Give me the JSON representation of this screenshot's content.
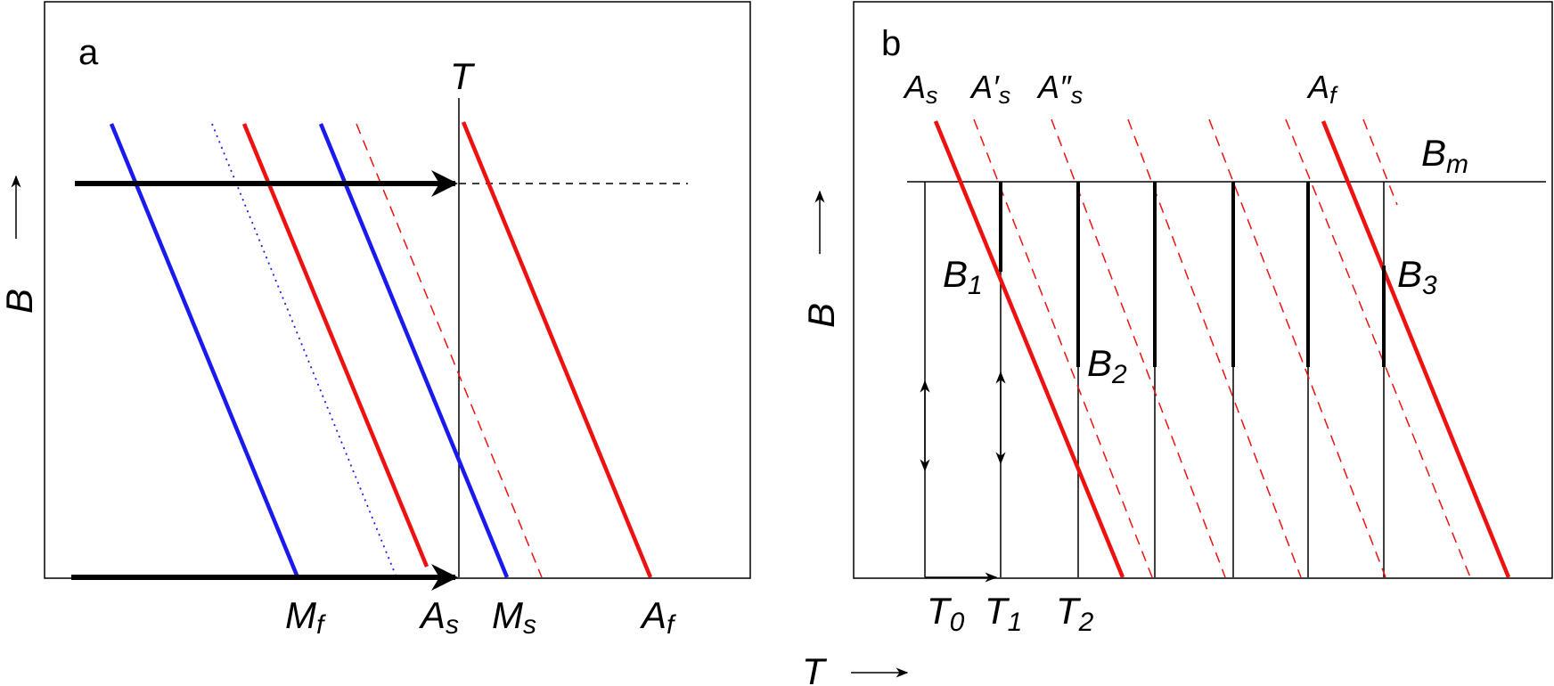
{
  "colors": {
    "red": "#ee1111",
    "blue": "#1a1aee",
    "black": "#000000"
  },
  "panel_a": {
    "letter": "a",
    "top_T": "T",
    "y_axis": "B",
    "labels": {
      "Mf": {
        "main": "M",
        "sub": "f"
      },
      "As": {
        "main": "A",
        "sub": "s"
      },
      "Ms": {
        "main": "M",
        "sub": "s"
      },
      "Af": {
        "main": "A",
        "sub": "f"
      }
    }
  },
  "panel_b": {
    "letter": "b",
    "y_axis": "B",
    "labels": {
      "As": {
        "main": "A",
        "sub": "s"
      },
      "As1": {
        "main": "A′",
        "sub": "s"
      },
      "As2": {
        "main": "A″",
        "sub": "s"
      },
      "Af": {
        "main": "A",
        "sub": "f"
      },
      "Bm": {
        "main": "B",
        "sub": "m"
      },
      "B1": {
        "main": "B",
        "sub": "1"
      },
      "B2": {
        "main": "B",
        "sub": "2"
      },
      "B3": {
        "main": "B",
        "sub": "3"
      },
      "T0": {
        "main": "T",
        "sub": "0"
      },
      "T1": {
        "main": "T",
        "sub": "1"
      },
      "T2": {
        "main": "T",
        "sub": "2"
      }
    }
  },
  "x_axis": "T"
}
